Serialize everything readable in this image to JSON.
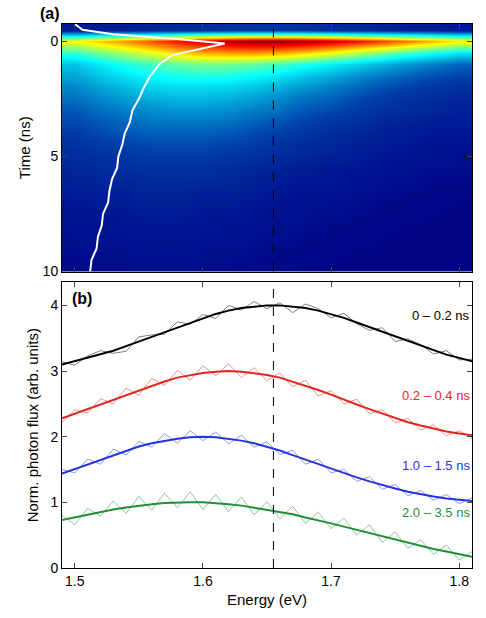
{
  "chart_data": [
    {
      "type": "heatmap",
      "panel_label": "(a)",
      "y_label": "Time (ns)",
      "x": [
        1.5,
        1.52,
        1.54,
        1.56,
        1.58,
        1.6,
        1.62,
        1.64,
        1.66,
        1.68,
        1.7,
        1.72,
        1.74,
        1.76,
        1.78,
        1.8
      ],
      "y": [
        -0.5,
        0,
        0.5,
        1.0,
        1.5,
        2.0,
        2.5,
        3.0,
        3.5,
        4.0,
        4.5,
        5.0,
        5.5,
        6.0,
        6.5,
        7.0,
        7.5,
        8.0,
        8.5,
        9.0,
        9.5,
        10.0
      ],
      "z": [
        [
          5,
          6,
          6,
          7,
          8,
          9,
          10,
          11,
          11,
          10,
          9,
          8,
          7,
          6,
          6,
          5
        ],
        [
          62,
          68,
          74,
          80,
          86,
          91,
          95,
          98,
          98,
          96,
          92,
          87,
          82,
          76,
          70,
          64
        ],
        [
          42,
          48,
          54,
          60,
          66,
          70,
          72,
          72,
          70,
          66,
          61,
          55,
          49,
          43,
          38,
          34
        ],
        [
          30,
          35,
          40,
          44,
          47,
          49,
          49,
          47,
          44,
          40,
          36,
          32,
          28,
          24,
          21,
          18
        ],
        [
          26,
          30,
          34,
          37,
          39,
          40,
          39,
          37,
          34,
          30,
          27,
          23,
          20,
          17,
          15,
          13
        ],
        [
          22,
          26,
          29,
          32,
          33,
          33,
          32,
          30,
          27,
          24,
          21,
          18,
          15,
          13,
          11,
          10
        ],
        [
          19,
          22,
          25,
          27,
          28,
          28,
          27,
          25,
          22,
          19,
          17,
          14,
          12,
          10,
          9,
          8
        ],
        [
          16,
          19,
          21,
          23,
          24,
          24,
          23,
          21,
          19,
          16,
          14,
          12,
          10,
          9,
          8,
          7
        ],
        [
          14,
          16,
          18,
          20,
          20,
          20,
          19,
          17,
          15,
          13,
          11,
          10,
          8,
          7,
          6,
          6
        ],
        [
          12,
          14,
          16,
          17,
          17,
          17,
          16,
          14,
          13,
          11,
          9,
          8,
          7,
          6,
          5,
          5
        ],
        [
          10,
          12,
          13,
          14,
          14,
          14,
          13,
          12,
          10,
          9,
          8,
          7,
          6,
          5,
          4,
          4
        ],
        [
          9,
          10,
          11,
          12,
          12,
          12,
          11,
          10,
          9,
          8,
          7,
          6,
          5,
          4,
          4,
          3
        ],
        [
          8,
          9,
          10,
          10,
          10,
          10,
          9,
          8,
          7,
          6,
          5,
          5,
          4,
          3,
          3,
          3
        ],
        [
          7,
          8,
          8,
          9,
          9,
          9,
          8,
          7,
          6,
          5,
          5,
          4,
          3,
          3,
          2,
          2
        ],
        [
          6,
          7,
          7,
          8,
          8,
          7,
          7,
          6,
          5,
          4,
          4,
          3,
          3,
          2,
          2,
          2
        ],
        [
          5,
          6,
          6,
          7,
          7,
          6,
          6,
          5,
          4,
          4,
          3,
          3,
          2,
          2,
          2,
          1
        ],
        [
          4,
          5,
          5,
          6,
          6,
          5,
          5,
          4,
          4,
          3,
          3,
          2,
          2,
          2,
          1,
          1
        ],
        [
          4,
          4,
          5,
          5,
          5,
          5,
          4,
          4,
          3,
          3,
          2,
          2,
          2,
          1,
          1,
          1
        ],
        [
          3,
          4,
          4,
          4,
          4,
          4,
          4,
          3,
          3,
          2,
          2,
          2,
          1,
          1,
          1,
          1
        ],
        [
          3,
          3,
          3,
          4,
          4,
          3,
          3,
          3,
          2,
          2,
          2,
          1,
          1,
          1,
          1,
          1
        ],
        [
          2,
          3,
          3,
          3,
          3,
          3,
          3,
          2,
          2,
          2,
          1,
          1,
          1,
          1,
          1,
          1
        ],
        [
          2,
          2,
          2,
          3,
          3,
          2,
          2,
          2,
          2,
          1,
          1,
          1,
          1,
          1,
          1,
          1
        ]
      ],
      "zlim": [
        0,
        100
      ],
      "curve": {
        "color": "#ffffff",
        "x": [
          1.5,
          1.506,
          1.53,
          1.58,
          1.617,
          1.6,
          1.576,
          1.566,
          1.559,
          1.554,
          1.55,
          1.545,
          1.543,
          1.539,
          1.537,
          1.534,
          1.533,
          1.529,
          1.527,
          1.526,
          1.522,
          1.521,
          1.518,
          1.517,
          1.513,
          1.512
        ],
        "y": [
          -0.75,
          -0.5,
          -0.3,
          -0.1,
          0.1,
          0.3,
          0.6,
          1.0,
          1.5,
          2.0,
          2.5,
          3.0,
          3.5,
          4.0,
          4.5,
          5.0,
          5.5,
          6.0,
          6.5,
          7.0,
          7.5,
          8.0,
          8.5,
          9.0,
          9.5,
          10.0
        ]
      },
      "reference_line": {
        "x": 1.655,
        "line_style": "dash",
        "color": "#000000"
      },
      "xlim": [
        1.49,
        1.81
      ],
      "xticks": [
        1.5,
        1.6,
        1.7,
        1.8
      ],
      "ylim": [
        10,
        -0.75
      ],
      "yticks": [
        0,
        5,
        10
      ],
      "tick_labels": "y"
    },
    {
      "type": "line",
      "panel_label": "(b)",
      "x_label": "Energy (eV)",
      "y_label": "Norm. photon flux (arb. units)",
      "x": [
        1.49,
        1.5,
        1.51,
        1.52,
        1.53,
        1.54,
        1.55,
        1.56,
        1.57,
        1.58,
        1.59,
        1.6,
        1.61,
        1.62,
        1.63,
        1.64,
        1.65,
        1.66,
        1.67,
        1.68,
        1.69,
        1.7,
        1.71,
        1.72,
        1.73,
        1.74,
        1.75,
        1.76,
        1.77,
        1.78,
        1.79,
        1.8,
        1.81
      ],
      "series": [
        {
          "name": "0 – 0.2 ns",
          "color": "#000000",
          "label_x": 1.81,
          "label_y": 3.7,
          "values": [
            3.14,
            3.09,
            3.23,
            3.31,
            3.27,
            3.3,
            3.52,
            3.55,
            3.56,
            3.75,
            3.71,
            3.86,
            3.8,
            4.0,
            3.93,
            4.06,
            3.95,
            4.04,
            3.89,
            4.02,
            3.95,
            3.81,
            3.88,
            3.72,
            3.62,
            3.66,
            3.45,
            3.49,
            3.4,
            3.26,
            3.31,
            3.17,
            3.18
          ],
          "fit": [
            3.1,
            3.15,
            3.2,
            3.25,
            3.31,
            3.38,
            3.45,
            3.53,
            3.6,
            3.67,
            3.74,
            3.81,
            3.87,
            3.92,
            3.96,
            3.98,
            4.0,
            4.0,
            3.98,
            3.96,
            3.92,
            3.87,
            3.81,
            3.74,
            3.67,
            3.6,
            3.53,
            3.45,
            3.38,
            3.31,
            3.25,
            3.2,
            3.15
          ]
        },
        {
          "name": "0.2 – 0.4 ns",
          "color": "#e3261f",
          "label_x": 1.81,
          "label_y": 2.48,
          "values": [
            2.22,
            2.41,
            2.36,
            2.58,
            2.5,
            2.74,
            2.63,
            2.89,
            2.78,
            3.01,
            2.86,
            3.08,
            2.93,
            3.11,
            2.9,
            3.05,
            2.85,
            2.97,
            2.76,
            2.86,
            2.62,
            2.7,
            2.5,
            2.57,
            2.35,
            2.41,
            2.21,
            2.28,
            2.1,
            2.18,
            2.01,
            2.09,
            1.98
          ],
          "fit": [
            2.28,
            2.35,
            2.42,
            2.49,
            2.56,
            2.64,
            2.71,
            2.78,
            2.84,
            2.9,
            2.94,
            2.97,
            2.99,
            3.0,
            2.99,
            2.97,
            2.94,
            2.9,
            2.84,
            2.78,
            2.71,
            2.64,
            2.56,
            2.49,
            2.42,
            2.35,
            2.28,
            2.22,
            2.17,
            2.12,
            2.08,
            2.05,
            2.02
          ]
        },
        {
          "name": "1.0 – 1.5 ns",
          "color": "#2434d8",
          "label_x": 1.81,
          "label_y": 1.42,
          "values": [
            1.5,
            1.45,
            1.66,
            1.58,
            1.81,
            1.72,
            1.93,
            1.84,
            2.05,
            1.9,
            2.09,
            1.94,
            2.07,
            1.89,
            2.02,
            1.84,
            1.92,
            1.73,
            1.79,
            1.58,
            1.66,
            1.45,
            1.5,
            1.32,
            1.39,
            1.2,
            1.27,
            1.1,
            1.18,
            1.03,
            1.12,
            0.98,
            1.07
          ],
          "fit": [
            1.44,
            1.51,
            1.58,
            1.65,
            1.72,
            1.79,
            1.85,
            1.9,
            1.94,
            1.97,
            1.99,
            2.0,
            1.99,
            1.97,
            1.94,
            1.9,
            1.85,
            1.79,
            1.72,
            1.65,
            1.58,
            1.51,
            1.44,
            1.38,
            1.32,
            1.26,
            1.21,
            1.16,
            1.12,
            1.09,
            1.06,
            1.04,
            1.02
          ]
        },
        {
          "name": "2.0 – 3.5 ns",
          "color": "#1f8f3a",
          "label_x": 1.81,
          "label_y": 0.7,
          "values": [
            0.8,
            0.66,
            0.91,
            0.79,
            1.02,
            0.83,
            1.09,
            0.88,
            1.14,
            0.92,
            1.16,
            0.89,
            1.12,
            0.86,
            1.08,
            0.81,
            1.01,
            0.75,
            0.94,
            0.68,
            0.85,
            0.6,
            0.76,
            0.5,
            0.66,
            0.39,
            0.55,
            0.3,
            0.43,
            0.21,
            0.35,
            0.12,
            0.25
          ],
          "fit": [
            0.73,
            0.77,
            0.82,
            0.86,
            0.89,
            0.92,
            0.95,
            0.97,
            0.99,
            1.0,
            1.0,
            1.0,
            0.99,
            0.97,
            0.95,
            0.92,
            0.89,
            0.86,
            0.82,
            0.77,
            0.73,
            0.68,
            0.63,
            0.58,
            0.53,
            0.48,
            0.43,
            0.38,
            0.33,
            0.29,
            0.25,
            0.21,
            0.17
          ]
        }
      ],
      "reference_line": {
        "x": 1.655,
        "line_style": "dash",
        "color": "#000000"
      },
      "xlim": [
        1.49,
        1.81
      ],
      "xticks": [
        1.5,
        1.6,
        1.7,
        1.8
      ],
      "ylim": [
        0,
        4.35
      ],
      "yticks": [
        0,
        1,
        2,
        3,
        4
      ]
    }
  ]
}
